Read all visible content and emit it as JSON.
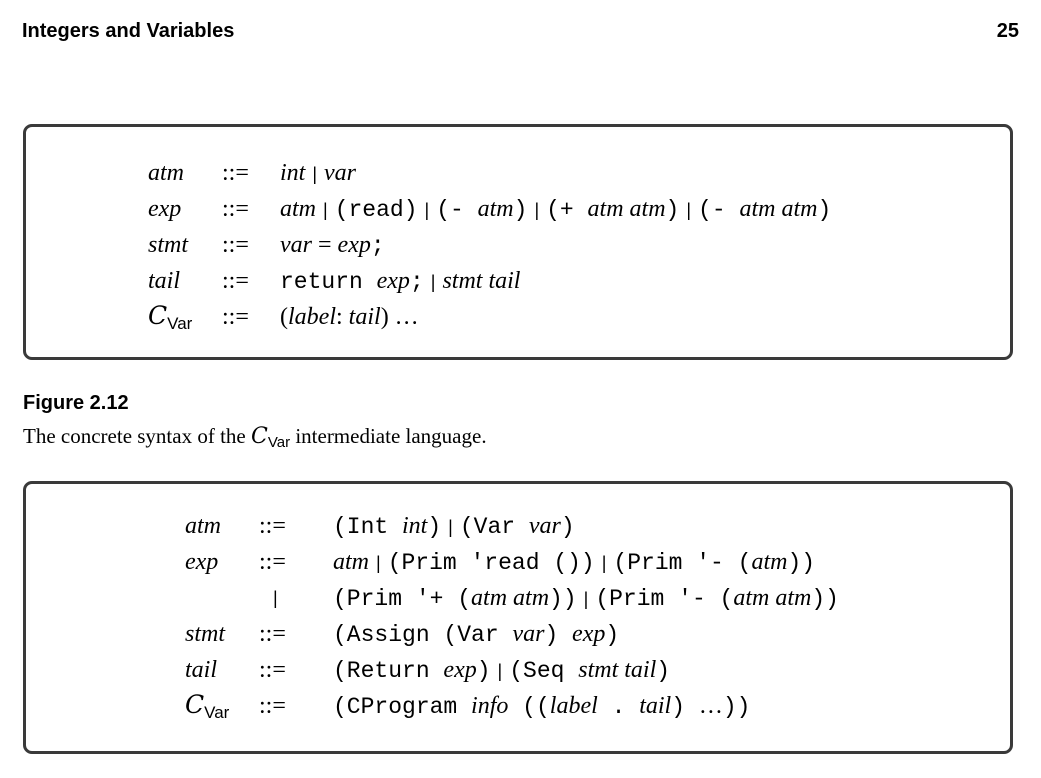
{
  "header": {
    "running_head": "Integers and Variables",
    "page_number": "25"
  },
  "figure": {
    "label": "Figure 2.12",
    "caption_before": "The concrete syntax of the ",
    "caption_language": "C",
    "caption_subscript": "Var",
    "caption_after": " intermediate language."
  },
  "concrete_grammar": {
    "rules": [
      {
        "lhs": "atm",
        "def": "::=",
        "rhs": [
          [
            "it",
            "int"
          ],
          [
            "bar",
            "|"
          ],
          [
            "it",
            "var"
          ]
        ]
      },
      {
        "lhs": "exp",
        "def": "::=",
        "rhs": [
          [
            "it",
            "atm"
          ],
          [
            "bar",
            "|"
          ],
          [
            "tt",
            "(read)"
          ],
          [
            "bar",
            "|"
          ],
          [
            "tt",
            "(- "
          ],
          [
            "it",
            "atm"
          ],
          [
            "tt",
            ")"
          ],
          [
            "bar",
            "|"
          ],
          [
            "tt",
            "(+ "
          ],
          [
            "it",
            "atm atm"
          ],
          [
            "tt",
            ")"
          ],
          [
            "bar",
            "|"
          ],
          [
            "tt",
            "(- "
          ],
          [
            "it",
            "atm atm"
          ],
          [
            "tt",
            ")"
          ]
        ]
      },
      {
        "lhs": "stmt",
        "def": "::=",
        "rhs": [
          [
            "it",
            "var"
          ],
          [
            "rm",
            " = "
          ],
          [
            "it",
            "exp"
          ],
          [
            "tt",
            ";"
          ]
        ]
      },
      {
        "lhs": "tail",
        "def": "::=",
        "rhs": [
          [
            "tt",
            "return "
          ],
          [
            "it",
            "exp"
          ],
          [
            "tt",
            ";"
          ],
          [
            "bar",
            "|"
          ],
          [
            "it",
            "stmt tail"
          ]
        ]
      },
      {
        "lhs": "C",
        "lhs_sub": "Var",
        "def": "::=",
        "rhs": [
          [
            "rm",
            "("
          ],
          [
            "it",
            "label"
          ],
          [
            "rm",
            ": "
          ],
          [
            "it",
            "tail"
          ],
          [
            "rm",
            ") …"
          ]
        ]
      }
    ]
  },
  "abstract_grammar": {
    "rules": [
      {
        "lhs": "atm",
        "def": "::=",
        "rhs": [
          [
            "tt",
            "(Int "
          ],
          [
            "it",
            "int"
          ],
          [
            "tt",
            ")"
          ],
          [
            "bar",
            "|"
          ],
          [
            "tt",
            "(Var "
          ],
          [
            "it",
            "var"
          ],
          [
            "tt",
            ")"
          ]
        ]
      },
      {
        "lhs": "exp",
        "def": "::=",
        "rhs": [
          [
            "it",
            "atm"
          ],
          [
            "bar",
            "|"
          ],
          [
            "tt",
            "(Prim 'read ())"
          ],
          [
            "bar",
            "|"
          ],
          [
            "tt",
            "(Prim '- ("
          ],
          [
            "it",
            "atm"
          ],
          [
            "tt",
            "))"
          ]
        ]
      },
      {
        "lhs": "",
        "def": "|",
        "rhs": [
          [
            "tt",
            "(Prim '+ ("
          ],
          [
            "it",
            "atm atm"
          ],
          [
            "tt",
            "))"
          ],
          [
            "bar",
            "|"
          ],
          [
            "tt",
            "(Prim '- ("
          ],
          [
            "it",
            "atm atm"
          ],
          [
            "tt",
            "))"
          ]
        ]
      },
      {
        "lhs": "stmt",
        "def": "::=",
        "rhs": [
          [
            "tt",
            "(Assign (Var "
          ],
          [
            "it",
            "var"
          ],
          [
            "tt",
            ") "
          ],
          [
            "it",
            "exp"
          ],
          [
            "tt",
            ")"
          ]
        ]
      },
      {
        "lhs": "tail",
        "def": "::=",
        "rhs": [
          [
            "tt",
            "(Return "
          ],
          [
            "it",
            "exp"
          ],
          [
            "tt",
            ")"
          ],
          [
            "bar",
            "|"
          ],
          [
            "tt",
            "(Seq "
          ],
          [
            "it",
            "stmt tail"
          ],
          [
            "tt",
            ")"
          ]
        ]
      },
      {
        "lhs": "C",
        "lhs_sub": "Var",
        "def": "::=",
        "rhs": [
          [
            "tt",
            "(CProgram "
          ],
          [
            "it",
            "info"
          ],
          [
            "tt",
            " (("
          ],
          [
            "it",
            "label"
          ],
          [
            "tt",
            " . "
          ],
          [
            "it",
            "tail"
          ],
          [
            "tt",
            ") "
          ],
          [
            "rm",
            "…"
          ],
          [
            "tt",
            "))"
          ]
        ]
      }
    ]
  }
}
